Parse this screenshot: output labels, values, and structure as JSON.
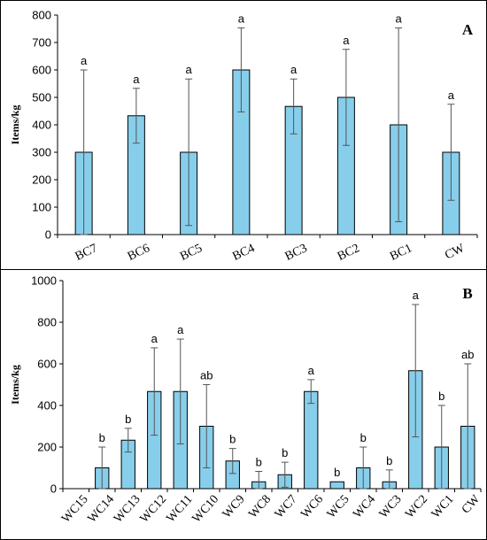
{
  "style": {
    "bar_fill": "#87CEEB",
    "bar_stroke": "#000000",
    "error_bar_color": "#555555"
  },
  "chart_data": [
    {
      "type": "bar",
      "panel_label": "A",
      "ylabel": "Items/kg",
      "ylim": [
        0,
        800
      ],
      "yticks": [
        0,
        100,
        200,
        300,
        400,
        500,
        600,
        700,
        800
      ],
      "categories": [
        "BC7",
        "BC6",
        "BC5",
        "BC4",
        "BC3",
        "BC2",
        "BC1",
        "CW"
      ],
      "values": [
        300,
        433,
        300,
        600,
        467,
        500,
        400,
        300
      ],
      "error": [
        300,
        100,
        267,
        153,
        100,
        175,
        353,
        175
      ],
      "significance": [
        "a",
        "a",
        "a",
        "a",
        "a",
        "a",
        "a",
        "a"
      ]
    },
    {
      "type": "bar",
      "panel_label": "B",
      "ylabel": "Items/kg",
      "ylim": [
        0,
        1000
      ],
      "yticks": [
        0,
        200,
        400,
        600,
        800,
        1000
      ],
      "categories": [
        "WC15",
        "WC14",
        "WC13",
        "WC12",
        "WC11",
        "WC10",
        "WC9",
        "WC8",
        "WC7",
        "WC6",
        "WC5",
        "WC4",
        "WC3",
        "WC2",
        "WC1",
        "CW"
      ],
      "values": [
        0,
        100,
        233,
        467,
        467,
        300,
        133,
        33,
        67,
        467,
        33,
        100,
        33,
        567,
        200,
        300
      ],
      "error": [
        0,
        100,
        57,
        210,
        252,
        200,
        60,
        50,
        60,
        57,
        0,
        100,
        57,
        318,
        200,
        300
      ],
      "significance": [
        "",
        "b",
        "b",
        "a",
        "a",
        "ab",
        "b",
        "b",
        "b",
        "a",
        "b",
        "b",
        "b",
        "a",
        "b",
        "ab"
      ]
    }
  ]
}
